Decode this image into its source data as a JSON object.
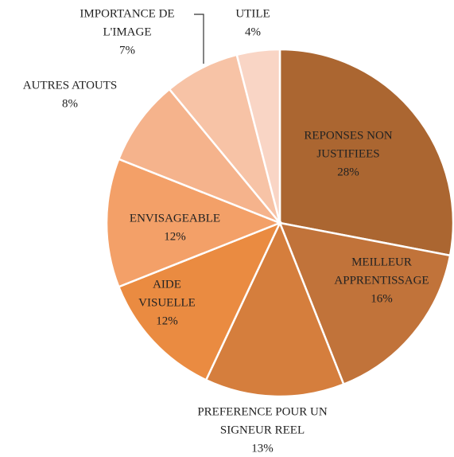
{
  "chart_data": {
    "type": "pie",
    "categories": [
      [
        "REPONSES NON",
        "JUSTIFIEES"
      ],
      [
        "MEILLEUR",
        "APPRENTISSAGE"
      ],
      [
        "PREFERENCE POUR UN",
        "SIGNEUR REEL"
      ],
      [
        "AIDE",
        "VISUELLE"
      ],
      [
        "ENVISAGEABLE"
      ],
      [
        "AUTRES  ATOUTS"
      ],
      [
        "IMPORTANCE DE",
        "L'IMAGE"
      ],
      [
        "UTILE"
      ]
    ],
    "values": [
      28,
      16,
      13,
      12,
      12,
      8,
      7,
      4
    ],
    "value_labels": [
      "28%",
      "16%",
      "13%",
      "12%",
      "12%",
      "8%",
      "7%",
      "4%"
    ],
    "colors": [
      "#ab6631",
      "#c1733a",
      "#d57e3d",
      "#ea8b41",
      "#f3a068",
      "#f5b38c",
      "#f7c3a6",
      "#f9d5c5"
    ]
  }
}
